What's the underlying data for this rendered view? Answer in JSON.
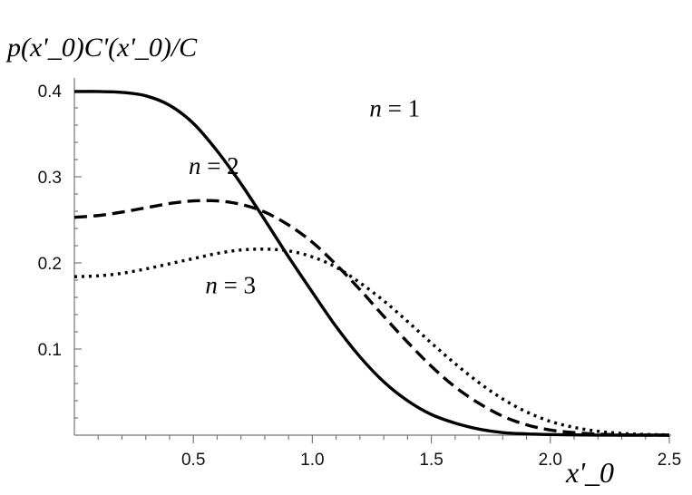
{
  "chart_data": {
    "type": "line",
    "title": "",
    "xlabel": "x'_0",
    "ylabel": "p(x'_0)C'(x'_0)/C",
    "xlim": [
      0,
      2.5
    ],
    "ylim": [
      0,
      0.4
    ],
    "grid": false,
    "x_ticks": [
      {
        "value": 0.5,
        "label": "0.5"
      },
      {
        "value": 1.0,
        "label": "1.0"
      },
      {
        "value": 1.5,
        "label": "1.5"
      },
      {
        "value": 2.0,
        "label": "2.0"
      },
      {
        "value": 2.5,
        "label": "2.5"
      }
    ],
    "y_ticks": [
      {
        "value": 0.1,
        "label": "0.1"
      },
      {
        "value": 0.2,
        "label": "0.2"
      },
      {
        "value": 0.3,
        "label": "0.3"
      },
      {
        "value": 0.4,
        "label": "0.4"
      }
    ],
    "series": [
      {
        "name": "n = 1",
        "style": "solid",
        "x": [
          0,
          0.1,
          0.2,
          0.3,
          0.4,
          0.5,
          0.6,
          0.7,
          0.8,
          0.9,
          1.0,
          1.1,
          1.2,
          1.3,
          1.4,
          1.5,
          1.6,
          1.7,
          1.8,
          1.9,
          2.0,
          2.1,
          2.2,
          2.3,
          2.4,
          2.5
        ],
        "values": [
          0.399,
          0.399,
          0.398,
          0.394,
          0.383,
          0.362,
          0.33,
          0.292,
          0.25,
          0.207,
          0.166,
          0.126,
          0.091,
          0.062,
          0.04,
          0.024,
          0.014,
          0.007,
          0.003,
          0.0015,
          0.0007,
          0.0003,
          0.0001,
          0.0,
          0.0,
          0.0
        ]
      },
      {
        "name": "n = 2",
        "style": "dashed",
        "x": [
          0,
          0.1,
          0.2,
          0.3,
          0.4,
          0.5,
          0.6,
          0.7,
          0.8,
          0.9,
          1.0,
          1.1,
          1.2,
          1.3,
          1.4,
          1.5,
          1.6,
          1.7,
          1.8,
          1.9,
          2.0,
          2.1,
          2.2,
          2.3,
          2.4,
          2.5
        ],
        "values": [
          0.253,
          0.255,
          0.259,
          0.264,
          0.269,
          0.272,
          0.272,
          0.268,
          0.259,
          0.244,
          0.224,
          0.198,
          0.169,
          0.138,
          0.108,
          0.08,
          0.056,
          0.037,
          0.022,
          0.012,
          0.006,
          0.003,
          0.0012,
          0.0004,
          0.0001,
          0.0
        ]
      },
      {
        "name": "n = 3",
        "style": "dotted",
        "x": [
          0,
          0.1,
          0.2,
          0.3,
          0.4,
          0.5,
          0.6,
          0.7,
          0.8,
          0.9,
          1.0,
          1.1,
          1.2,
          1.3,
          1.4,
          1.5,
          1.6,
          1.7,
          1.8,
          1.9,
          2.0,
          2.1,
          2.2,
          2.3,
          2.4,
          2.5
        ],
        "values": [
          0.184,
          0.185,
          0.188,
          0.193,
          0.199,
          0.205,
          0.211,
          0.215,
          0.216,
          0.214,
          0.207,
          0.195,
          0.177,
          0.156,
          0.132,
          0.107,
          0.083,
          0.061,
          0.042,
          0.027,
          0.016,
          0.009,
          0.0045,
          0.002,
          0.0008,
          0.0003
        ]
      }
    ],
    "annotations": [
      {
        "series": "n = 1",
        "x": 1.24,
        "y": 0.37
      },
      {
        "series": "n = 2",
        "x": 0.48,
        "y": 0.303
      },
      {
        "series": "n = 3",
        "x": 0.55,
        "y": 0.165
      }
    ]
  }
}
